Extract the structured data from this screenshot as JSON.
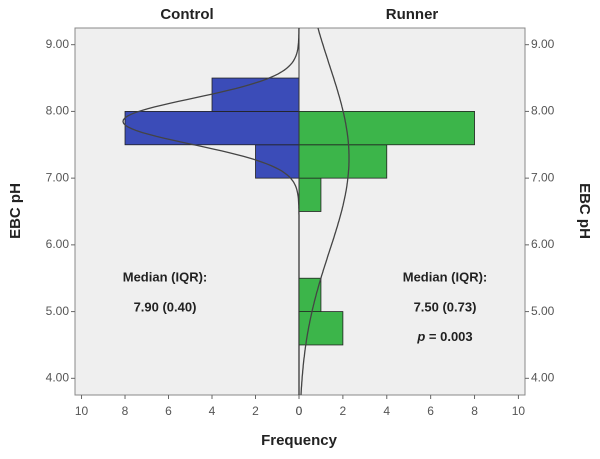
{
  "chart_data": {
    "type": "histogram",
    "orientation": "horizontal",
    "ylabel": "EBC pH",
    "xlabel": "Frequency",
    "bins": [
      4.5,
      5.0,
      5.5,
      6.0,
      6.5,
      7.0,
      7.5,
      8.0,
      8.5
    ],
    "series": [
      {
        "name": "Control",
        "side": "left",
        "color": "#3b4cb8",
        "values": [
          0,
          0,
          0,
          0,
          0,
          2,
          8,
          4
        ],
        "normal": {
          "mean": 7.85,
          "sd": 0.345
        }
      },
      {
        "name": "Runner",
        "side": "right",
        "color": "#3cb54a",
        "values": [
          2,
          1,
          0,
          0,
          1,
          4,
          8,
          0
        ],
        "normal": {
          "mean": 7.3,
          "sd": 1.4
        }
      }
    ],
    "ylim": [
      3.75,
      9.25
    ],
    "yticks": [
      {
        "value": 4,
        "label": "4.00"
      },
      {
        "value": 5,
        "label": "5.00"
      },
      {
        "value": 6,
        "label": "6.00"
      },
      {
        "value": 7,
        "label": "7.00"
      },
      {
        "value": 8,
        "label": "8.00"
      },
      {
        "value": 9,
        "label": "9.00"
      }
    ],
    "xlim": [
      0,
      10.3
    ],
    "xticks": [
      0,
      2,
      4,
      6,
      8,
      10
    ],
    "annotations": [
      {
        "side": "left",
        "lines": [
          "Median (IQR):",
          "7.90 (0.40)"
        ]
      },
      {
        "side": "right",
        "lines": [
          "Median (IQR):",
          "7.50 (0.73)",
          "p = 0.003"
        ]
      }
    ]
  }
}
